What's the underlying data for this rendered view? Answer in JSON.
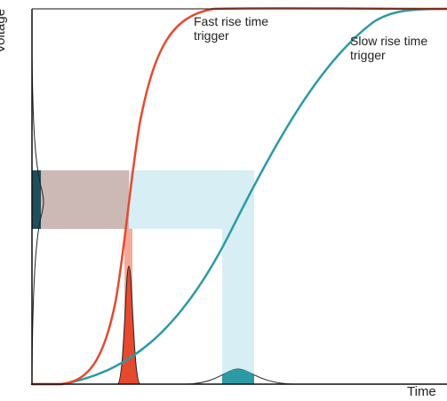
{
  "labels": {
    "y_axis": "Voltage",
    "x_axis": "Time",
    "fast_line1": "Fast rise time",
    "fast_line2": "trigger",
    "slow_line1": "Slow rise time",
    "slow_line2": "trigger"
  },
  "colors": {
    "fast_curve": "#e64a2e",
    "slow_curve": "#2b9aa6",
    "voltage_band": "#ccb9b6",
    "time_band": "#d6eef4",
    "voltage_peak_fill": "#1f4f5c",
    "fast_jitter_fill": "#f28c76",
    "slow_jitter_fill": "#2b9aa6",
    "axis": "#111111"
  },
  "icons": {
    "voltage_distribution": "gaussian-curve",
    "fast_jitter_distribution": "narrow-gaussian",
    "slow_jitter_distribution": "wide-gaussian"
  }
}
